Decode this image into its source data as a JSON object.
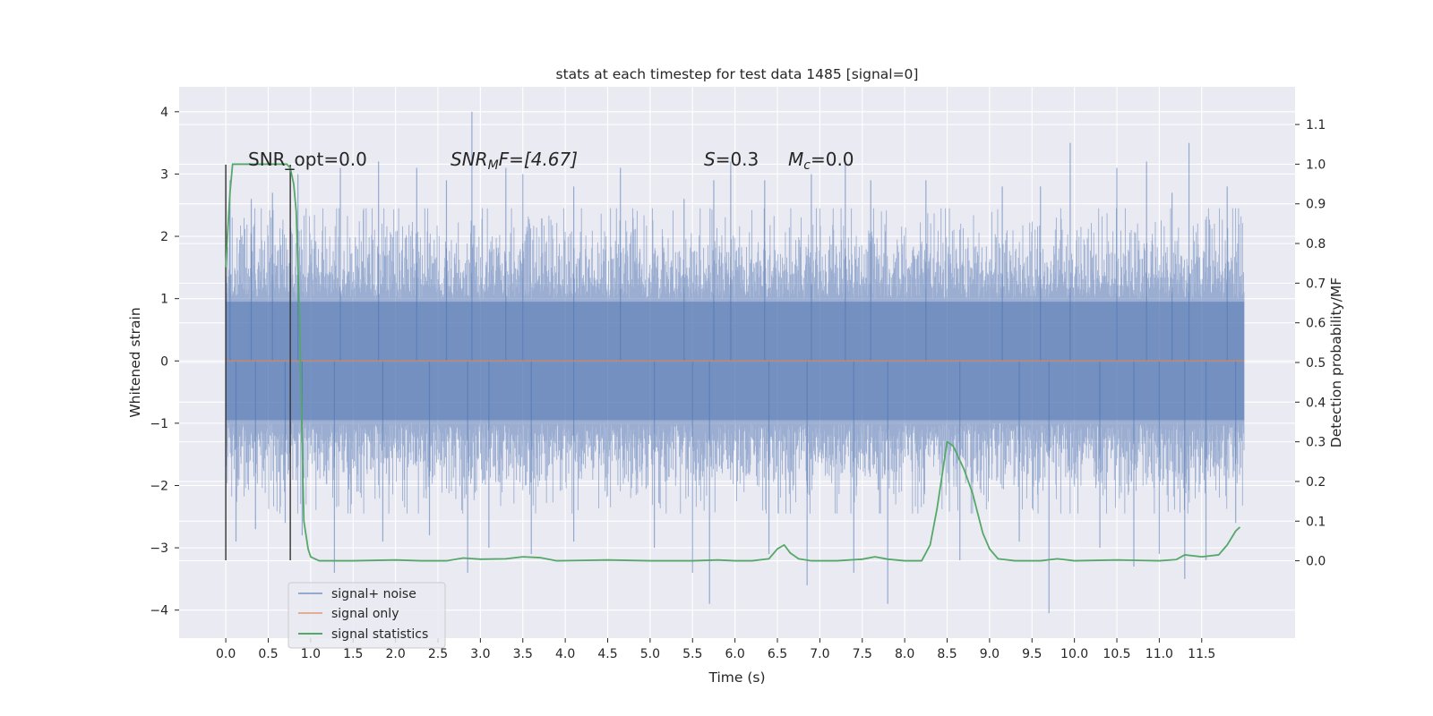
{
  "chart_data": {
    "type": "line",
    "title": "stats at each timestep for test data 1485 [signal=0]",
    "xlabel": "Time (s)",
    "ylabel": "Whitened strain",
    "y2label": "Detection probability/MF",
    "xlim": [
      -0.55,
      12.6
    ],
    "ylim": [
      -4.45,
      4.4
    ],
    "y2lim": [
      -0.195,
      1.195
    ],
    "x_ticks": [
      0.0,
      0.5,
      1.0,
      1.5,
      2.0,
      2.5,
      3.0,
      3.5,
      4.0,
      4.5,
      5.0,
      5.5,
      6.0,
      6.5,
      7.0,
      7.5,
      8.0,
      8.5,
      9.0,
      9.5,
      10.0,
      10.5,
      11.0,
      11.5
    ],
    "x_tick_labels": [
      "0.0",
      "0.5",
      "1.0",
      "1.5",
      "2.0",
      "2.5",
      "3.0",
      "3.5",
      "4.0",
      "4.5",
      "5.0",
      "5.5",
      "6.0",
      "6.5",
      "7.0",
      "7.5",
      "8.0",
      "8.5",
      "9.0",
      "9.5",
      "10.0",
      "10.5",
      "11.0",
      "11.5"
    ],
    "y_ticks": [
      4,
      3,
      2,
      1,
      0,
      -1,
      -2,
      -3,
      -4
    ],
    "y_tick_labels": [
      "4",
      "3",
      "2",
      "1",
      "0",
      "−1",
      "−2",
      "−3",
      "−4"
    ],
    "y2_ticks": [
      1.1,
      1.0,
      0.9,
      0.8,
      0.7,
      0.6,
      0.5,
      0.4,
      0.3,
      0.2,
      0.1,
      0.0
    ],
    "y2_tick_labels": [
      "1.1",
      "1.0",
      "0.9",
      "0.8",
      "0.7",
      "0.6",
      "0.5",
      "0.4",
      "0.3",
      "0.2",
      "0.1",
      "0.0"
    ],
    "grid": true,
    "legend_position": "lower-left",
    "annotations": {
      "snr_opt": "SNR_opt=0.0",
      "snr_mf_base": "SNR",
      "snr_mf_sub": "M",
      "snr_mf_rest": "F=[4.67]",
      "s_sym": "S",
      "s_val": "=0.3",
      "mc_sym": "M",
      "mc_sub": "c",
      "mc_val": "=0.0"
    },
    "markers": [
      {
        "x": 0.0,
        "y_from": -3.2,
        "y_to": 3.15
      },
      {
        "x": 0.76,
        "y_from": -3.2,
        "y_to": 3.15
      }
    ],
    "series": [
      {
        "name": "signal+ noise",
        "color": "#4c72b0",
        "kind": "noise",
        "x_range": [
          0.0,
          12.0
        ],
        "peaks_upper": [
          [
            0.05,
            2.9
          ],
          [
            0.3,
            2.6
          ],
          [
            0.55,
            2.7
          ],
          [
            0.85,
            3.0
          ],
          [
            1.35,
            3.1
          ],
          [
            1.8,
            3.2
          ],
          [
            2.25,
            3.1
          ],
          [
            2.6,
            2.9
          ],
          [
            2.9,
            4.0
          ],
          [
            3.3,
            3.1
          ],
          [
            3.5,
            3.0
          ],
          [
            4.1,
            2.8
          ],
          [
            4.65,
            3.1
          ],
          [
            5.4,
            2.6
          ],
          [
            5.75,
            2.9
          ],
          [
            5.95,
            3.2
          ],
          [
            6.35,
            2.9
          ],
          [
            6.9,
            3.0
          ],
          [
            7.3,
            3.2
          ],
          [
            7.6,
            2.9
          ],
          [
            8.25,
            2.9
          ],
          [
            9.15,
            2.8
          ],
          [
            9.6,
            2.8
          ],
          [
            9.95,
            3.5
          ],
          [
            10.5,
            3.1
          ],
          [
            10.85,
            3.2
          ],
          [
            11.15,
            2.7
          ],
          [
            11.35,
            3.5
          ],
          [
            11.8,
            2.8
          ]
        ],
        "peaks_lower": [
          [
            0.12,
            -2.9
          ],
          [
            0.35,
            -2.7
          ],
          [
            0.7,
            -2.6
          ],
          [
            0.9,
            -2.8
          ],
          [
            1.28,
            -3.4
          ],
          [
            1.85,
            -2.9
          ],
          [
            2.4,
            -2.8
          ],
          [
            2.85,
            -3.4
          ],
          [
            3.1,
            -3.0
          ],
          [
            3.6,
            -3.1
          ],
          [
            4.1,
            -2.9
          ],
          [
            5.05,
            -3.0
          ],
          [
            5.5,
            -3.4
          ],
          [
            5.7,
            -3.9
          ],
          [
            6.4,
            -3.1
          ],
          [
            6.85,
            -3.6
          ],
          [
            7.4,
            -3.4
          ],
          [
            7.8,
            -3.9
          ],
          [
            8.65,
            -3.2
          ],
          [
            9.35,
            -2.9
          ],
          [
            9.7,
            -4.05
          ],
          [
            10.3,
            -3.0
          ],
          [
            10.7,
            -3.3
          ],
          [
            11.0,
            -3.1
          ],
          [
            11.3,
            -3.5
          ],
          [
            11.55,
            -3.2
          ],
          [
            11.9,
            -2.6
          ]
        ]
      },
      {
        "name": "signal only",
        "color": "#dd8452",
        "kind": "flat",
        "x": [
          0.0,
          12.0
        ],
        "y": [
          0.0,
          0.0
        ]
      },
      {
        "name": "signal statistics",
        "color": "#55a868",
        "kind": "prob",
        "x": [
          0.0,
          0.02,
          0.05,
          0.08,
          0.12,
          0.17,
          0.25,
          0.35,
          0.5,
          0.6,
          0.68,
          0.72,
          0.76,
          0.8,
          0.83,
          0.87,
          0.92,
          0.97,
          1.0,
          1.1,
          1.5,
          2.0,
          2.3,
          2.6,
          2.8,
          3.0,
          3.3,
          3.5,
          3.7,
          3.9,
          4.5,
          5.0,
          5.5,
          5.8,
          6.0,
          6.2,
          6.4,
          6.5,
          6.58,
          6.65,
          6.75,
          6.9,
          7.2,
          7.5,
          7.65,
          7.8,
          8.0,
          8.2,
          8.3,
          8.38,
          8.5,
          8.57,
          8.7,
          8.8,
          8.92,
          9.0,
          9.1,
          9.3,
          9.6,
          9.8,
          10.0,
          10.5,
          11.0,
          11.2,
          11.3,
          11.5,
          11.7,
          11.8,
          11.9,
          11.95
        ],
        "y": [
          0.74,
          0.82,
          0.93,
          1.0,
          1.0,
          1.0,
          1.0,
          1.0,
          1.0,
          1.0,
          1.0,
          1.0,
          0.99,
          0.95,
          0.88,
          0.6,
          0.1,
          0.03,
          0.01,
          0.0,
          0.0,
          0.002,
          0.0,
          0.0,
          0.007,
          0.004,
          0.005,
          0.01,
          0.008,
          0.0,
          0.002,
          0.0,
          0.0,
          0.002,
          0.0,
          0.0,
          0.005,
          0.03,
          0.04,
          0.02,
          0.005,
          0.0,
          0.0,
          0.004,
          0.01,
          0.004,
          0.0,
          0.0,
          0.04,
          0.13,
          0.3,
          0.29,
          0.23,
          0.17,
          0.07,
          0.03,
          0.005,
          0.0,
          0.0,
          0.005,
          0.0,
          0.002,
          0.0,
          0.003,
          0.015,
          0.01,
          0.015,
          0.04,
          0.075,
          0.085
        ]
      }
    ]
  }
}
